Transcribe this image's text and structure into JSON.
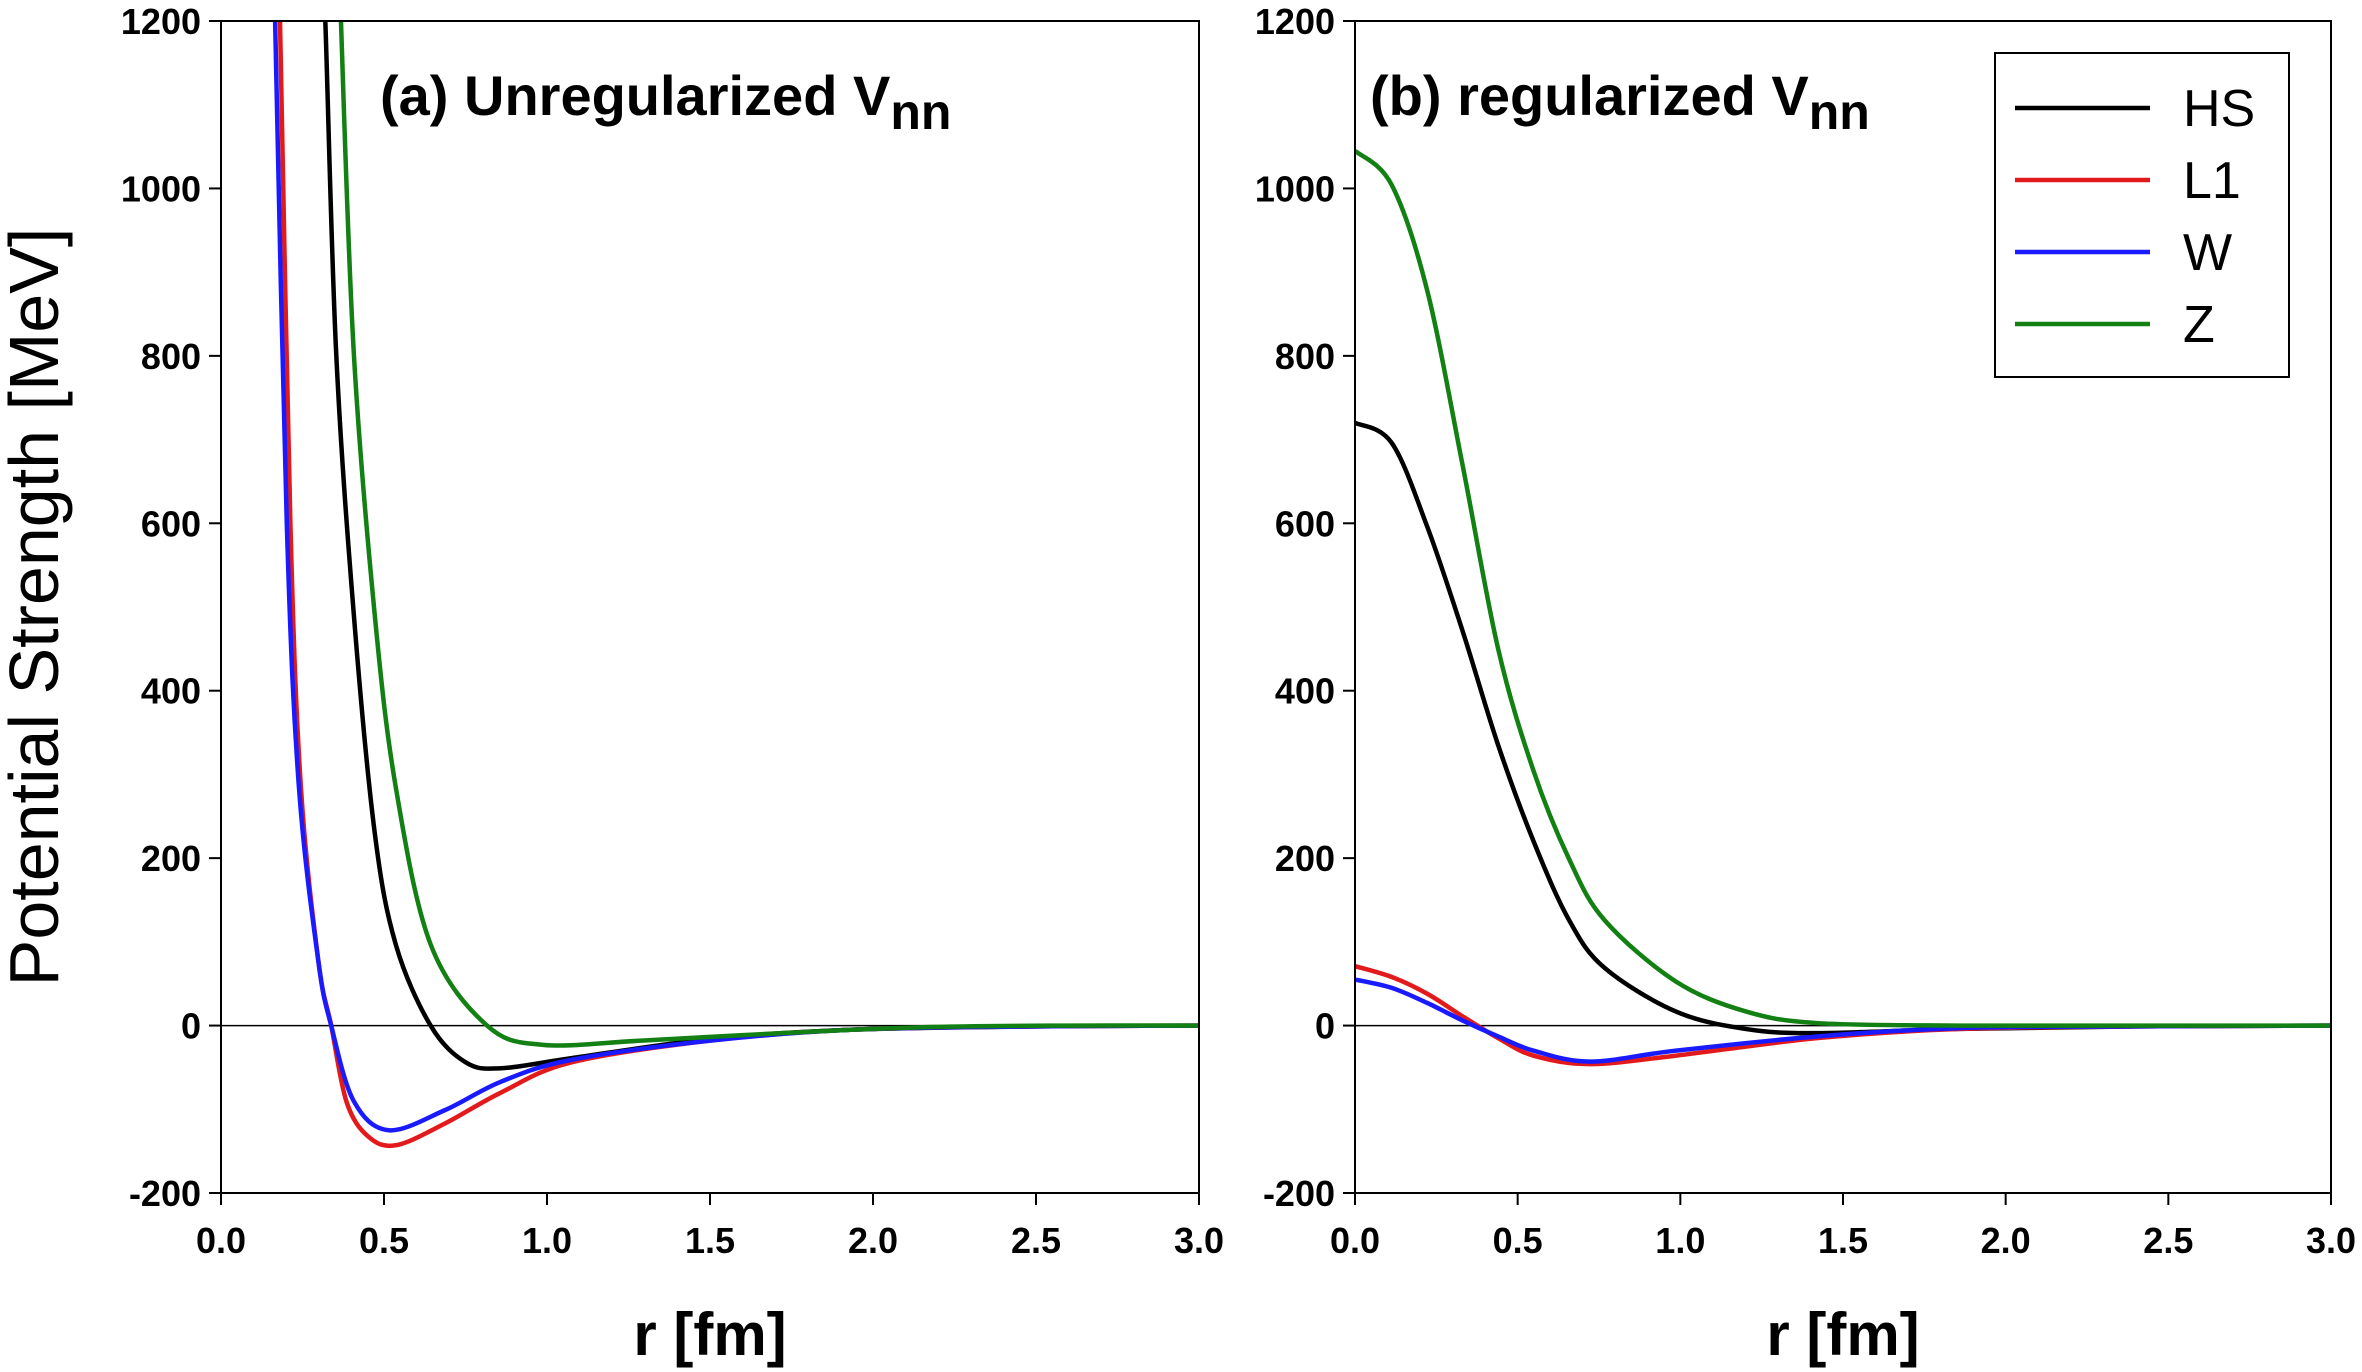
{
  "ylabel": "Potential Strength [MeV]",
  "colors": {
    "HS": "#000000",
    "L1": "#e31a1c",
    "W": "#1a1aff",
    "Z": "#128012"
  },
  "chart_data": [
    {
      "type": "line",
      "title": "(a) Unregularized V",
      "title_sub": "nn",
      "xlabel": "r [fm]",
      "ylabel": "Potential Strength [MeV]",
      "xlim": [
        0.0,
        3.0
      ],
      "ylim": [
        -200,
        1200
      ],
      "xticks": [
        "0.0",
        "0.5",
        "1.0",
        "1.5",
        "2.0",
        "2.5",
        "3.0"
      ],
      "yticks": [
        "-200",
        "0",
        "200",
        "400",
        "600",
        "800",
        "1000",
        "1200"
      ],
      "grid": false,
      "series": [
        {
          "name": "HS",
          "x": [
            0.3,
            0.32,
            0.353,
            0.407,
            0.471,
            0.536,
            0.643,
            0.751,
            0.859,
            1.074,
            1.5,
            1.93,
            2.5,
            3.0
          ],
          "y": [
            1400,
            1200,
            806,
            493,
            232,
            97,
            0,
            -44,
            -51,
            -39,
            -16,
            -5,
            -1,
            0
          ]
        },
        {
          "name": "L1",
          "x": [
            0.17,
            0.181,
            0.213,
            0.245,
            0.299,
            0.338,
            0.385,
            0.45,
            0.536,
            0.687,
            0.859,
            1.074,
            1.5,
            1.93,
            2.5,
            3.0
          ],
          "y": [
            1400,
            1200,
            597,
            285,
            76,
            0,
            -91,
            -132,
            -143,
            -117,
            -80,
            -44,
            -18,
            -5,
            -1,
            0
          ]
        },
        {
          "name": "W",
          "x": [
            0.155,
            0.166,
            0.202,
            0.239,
            0.299,
            0.338,
            0.407,
            0.514,
            0.687,
            0.859,
            1.074,
            1.5,
            1.93,
            2.5,
            3.0
          ],
          "y": [
            1400,
            1200,
            597,
            285,
            76,
            0,
            -90,
            -125,
            -101,
            -67,
            -41,
            -18,
            -5,
            -1,
            0
          ]
        },
        {
          "name": "Z",
          "x": [
            0.355,
            0.368,
            0.407,
            0.471,
            0.536,
            0.643,
            0.816,
            0.988,
            1.29,
            1.72,
            2.15,
            2.6,
            3.0
          ],
          "y": [
            1400,
            1200,
            806,
            493,
            285,
            97,
            0,
            -23,
            -18,
            -9,
            -2,
            0,
            0
          ]
        }
      ]
    },
    {
      "type": "line",
      "title": "(b) regularized V",
      "title_sub": "nn",
      "xlabel": "r [fm]",
      "xlim": [
        0.0,
        3.0
      ],
      "ylim": [
        -200,
        1200
      ],
      "xticks": [
        "0.0",
        "0.5",
        "1.0",
        "1.5",
        "2.0",
        "2.5",
        "3.0"
      ],
      "yticks": [
        "-200",
        "0",
        "200",
        "400",
        "600",
        "800",
        "1000",
        "1200"
      ],
      "grid": false,
      "legend": {
        "placement": "top-right",
        "entries": [
          "HS",
          "L1",
          "W",
          "Z"
        ]
      },
      "series": [
        {
          "name": "HS",
          "x": [
            0,
            0.113,
            0.222,
            0.331,
            0.44,
            0.549,
            0.658,
            0.767,
            0.985,
            1.2,
            1.42,
            1.86,
            2.4,
            3.0
          ],
          "y": [
            720,
            696,
            596,
            471,
            335,
            220,
            126,
            69,
            17,
            -4,
            -9,
            -4,
            -1,
            0
          ]
        },
        {
          "name": "L1",
          "x": [
            0,
            0.113,
            0.222,
            0.331,
            0.44,
            0.549,
            0.723,
            0.985,
            1.42,
            1.86,
            2.4,
            3.0
          ],
          "y": [
            71,
            58,
            38,
            11,
            -15,
            -36,
            -46,
            -36,
            -15,
            -4,
            -1,
            0
          ]
        },
        {
          "name": "W",
          "x": [
            0,
            0.113,
            0.222,
            0.331,
            0.44,
            0.549,
            0.723,
            0.985,
            1.42,
            1.86,
            2.4,
            3.0
          ],
          "y": [
            55,
            45,
            27,
            6,
            -13,
            -30,
            -43,
            -30,
            -13,
            -3,
            -1,
            0
          ]
        },
        {
          "name": "Z",
          "x": [
            0,
            0.113,
            0.222,
            0.331,
            0.44,
            0.549,
            0.658,
            0.767,
            0.985,
            1.2,
            1.42,
            1.86,
            2.4,
            3.0
          ],
          "y": [
            1045,
            1004,
            878,
            669,
            450,
            304,
            199,
            126,
            53,
            17,
            3,
            0,
            0,
            0
          ]
        }
      ]
    }
  ]
}
